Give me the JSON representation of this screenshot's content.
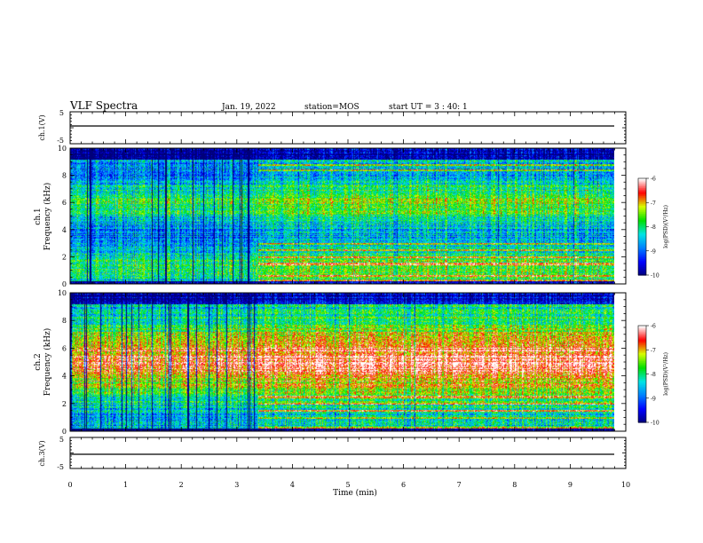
{
  "header": {
    "title": "VLF Spectra",
    "date": "Jan. 19, 2022",
    "station": "station=MOS",
    "start": "start UT =  3 : 40: 1"
  },
  "chart_data": [
    {
      "type": "line",
      "ylabel": "ch.1(V)",
      "ylim": [
        -5,
        5
      ],
      "y_ticks": [
        "5",
        "-5"
      ],
      "series": [
        {
          "values_constant": 0
        }
      ]
    },
    {
      "type": "heatmap",
      "ylabel_line1": "ch.1",
      "ylabel_line2": "Frequency (kHz)",
      "ylim": [
        0,
        10
      ],
      "y_ticks": [
        "0",
        "2",
        "4",
        "6",
        "8",
        "10"
      ],
      "colorbar": {
        "min": -10,
        "max": -6,
        "ticks": [
          "-6",
          "-7",
          "-8",
          "-9",
          "-10"
        ],
        "label": "log(PSD)(V²/Hz)"
      },
      "notable_lines_khz": [
        0.3,
        0.6,
        1.5,
        2.0,
        2.5,
        3.0,
        8.4,
        8.8
      ],
      "regime_change_min": 3.4
    },
    {
      "type": "heatmap",
      "ylabel_line1": "ch.2",
      "ylabel_line2": "Frequency (kHz)",
      "ylim": [
        0,
        10
      ],
      "y_ticks": [
        "0",
        "2",
        "4",
        "6",
        "8",
        "10"
      ],
      "colorbar": {
        "min": -10,
        "max": -6,
        "ticks": [
          "-6",
          "-7",
          "-8",
          "-9",
          "-10"
        ],
        "label": "log(PSD)(V²/Hz)"
      },
      "notable_lines_khz": [
        0.3,
        1.0,
        1.5,
        2.0,
        2.5
      ],
      "regime_change_min": 3.4
    },
    {
      "type": "line",
      "ylabel": "ch.3(V)",
      "ylim": [
        -5,
        5
      ],
      "y_ticks": [
        "5",
        "-5"
      ],
      "series": [
        {
          "values_constant": 0
        }
      ]
    }
  ],
  "x_axis": {
    "label": "Time (min)",
    "range": [
      0,
      10
    ],
    "ticks": [
      "0",
      "1",
      "2",
      "3",
      "4",
      "5",
      "6",
      "7",
      "8",
      "9",
      "10"
    ],
    "data_end_min": 9.85
  },
  "colors": {
    "scale": [
      "#00007a",
      "#0000ff",
      "#0080ff",
      "#00e5e5",
      "#00e000",
      "#d8ff00",
      "#ff0000",
      "#ffffff"
    ]
  }
}
